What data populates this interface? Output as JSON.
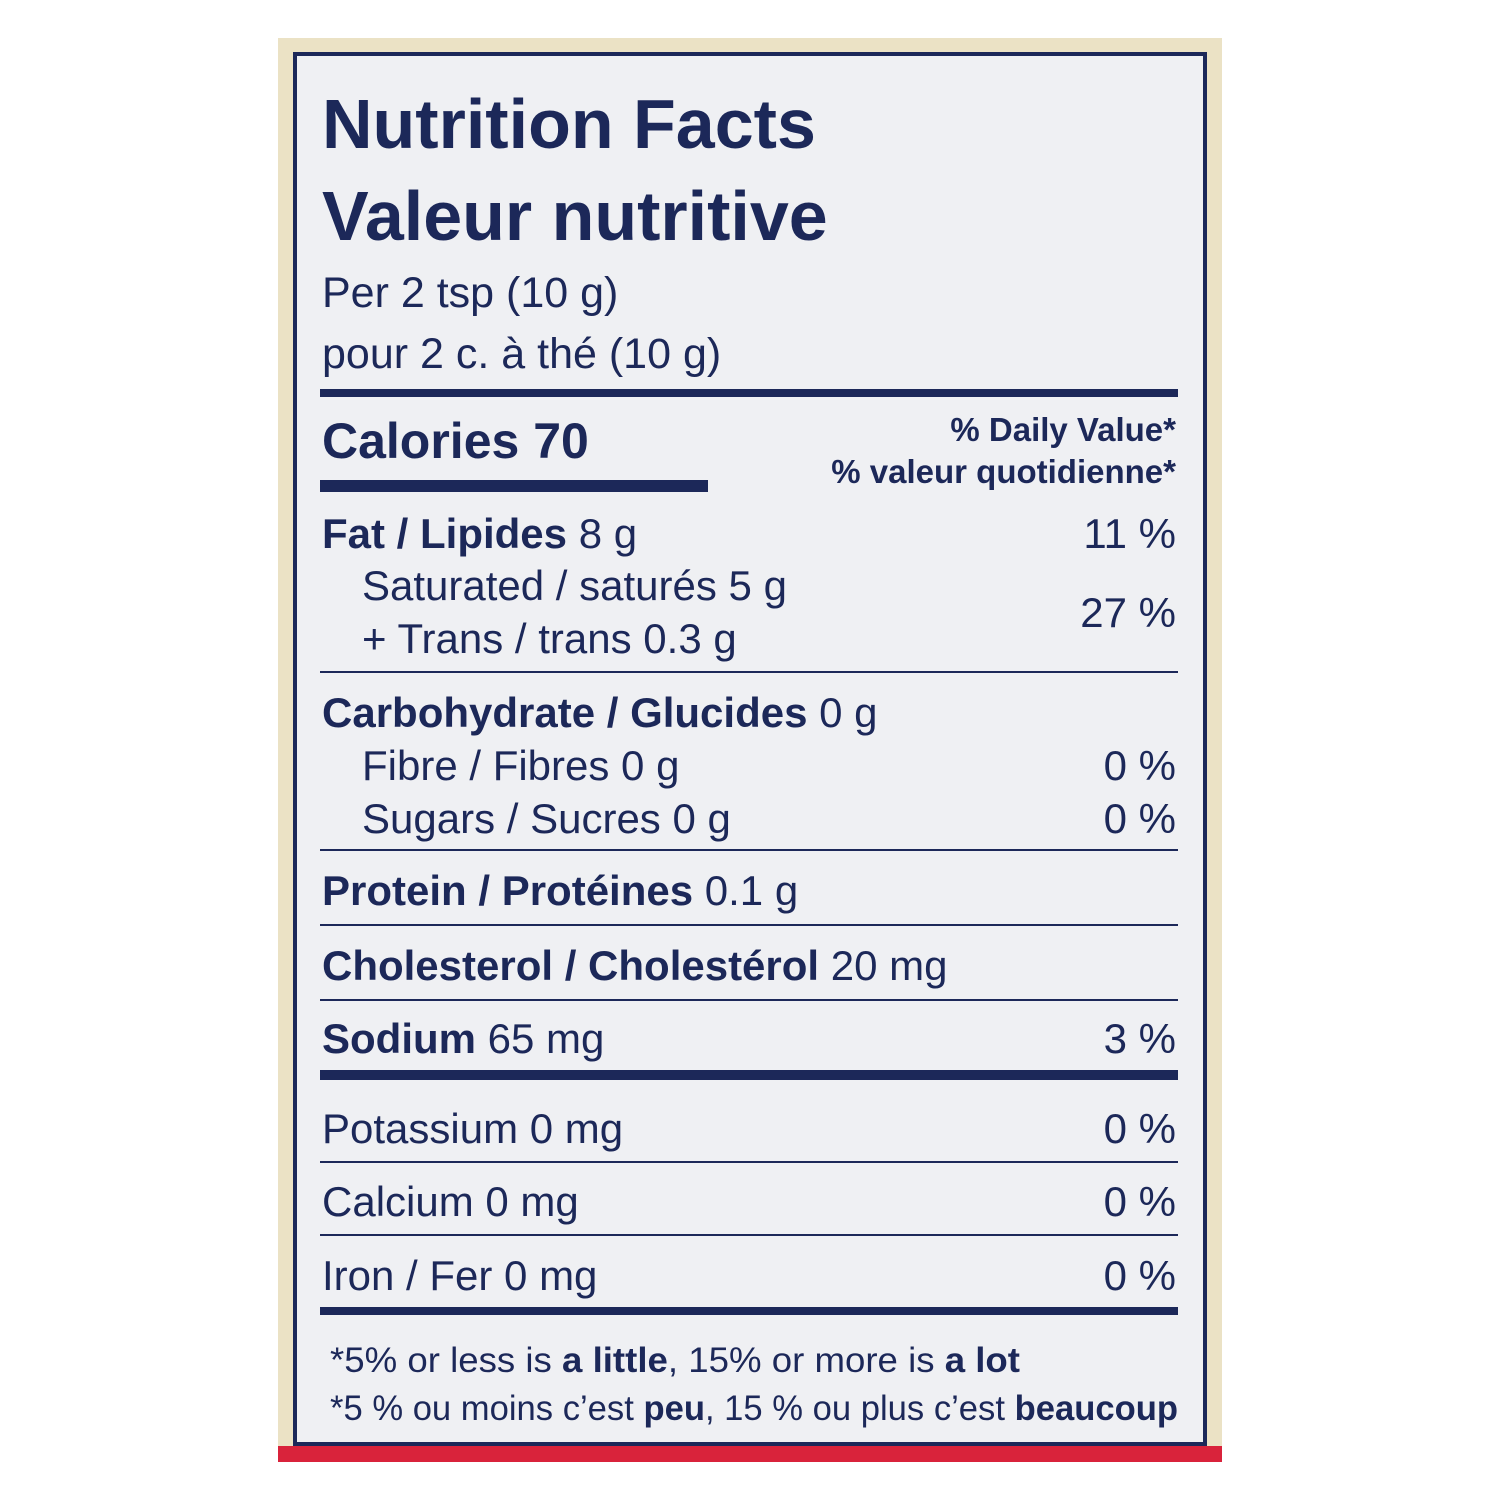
{
  "title": [
    "Nutrition Facts",
    "Valeur nutritive"
  ],
  "serving": [
    "Per 2 tsp (10 g)",
    "pour 2 c. à thé (10 g)"
  ],
  "calories": "Calories 70",
  "daily_value_header": [
    "% Daily Value*",
    "% valeur quotidienne*"
  ],
  "rows": [
    {
      "bold": "Fat / Lipides",
      "text": " 8 g",
      "dv": "11 %"
    },
    {
      "text": "Saturated / saturés 5 g"
    },
    {
      "text": "+ Trans / trans 0.3 g",
      "dv": "27 %"
    },
    {
      "bold": "Carbohydrate / Glucides",
      "text": " 0 g"
    },
    {
      "text": "Fibre / Fibres 0 g",
      "dv": "0 %"
    },
    {
      "text": "Sugars / Sucres 0 g",
      "dv": "0 %"
    },
    {
      "bold": "Protein / Protéines",
      "text": " 0.1 g"
    },
    {
      "bold": "Cholesterol / Cholestérol",
      "text": " 20 mg"
    },
    {
      "bold": "Sodium",
      "text": " 65 mg",
      "dv": "3 %"
    },
    {
      "text": "Potassium 0 mg",
      "dv": "0 %"
    },
    {
      "text": "Calcium 0 mg",
      "dv": "0 %"
    },
    {
      "text": "Iron / Fer 0 mg",
      "dv": "0 %"
    }
  ],
  "footnote": [
    [
      {
        "text": "*5% or less is "
      },
      {
        "text": "a little",
        "bold": true
      },
      {
        "text": ", 15% or more is "
      },
      {
        "text": "a lot",
        "bold": true
      }
    ],
    [
      {
        "text": "*5 % ou moins c’est "
      },
      {
        "text": "peu",
        "bold": true
      },
      {
        "text": ", 15 % ou plus c’est "
      },
      {
        "text": "beaucoup",
        "bold": true
      }
    ]
  ]
}
